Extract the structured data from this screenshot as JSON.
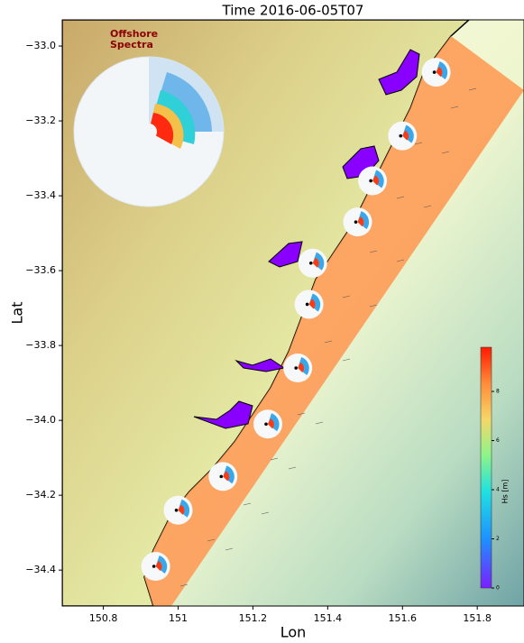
{
  "chart_data": {
    "type": "map",
    "title": "Time 2016-06-05T07",
    "x_label": "Lon",
    "y_label": "Lat",
    "annotation": "Offshore\nSpectra",
    "xlim": [
      150.69,
      151.925
    ],
    "ylim": [
      -34.496,
      -32.93
    ],
    "xticks": [
      150.8,
      151.0,
      151.2,
      151.4,
      151.6,
      151.8
    ],
    "yticks": [
      {
        "value": -33.0,
        "label": "−33.0"
      },
      {
        "value": -33.2,
        "label": "−33.2"
      },
      {
        "value": -33.4,
        "label": "−33.4"
      },
      {
        "value": -33.6,
        "label": "−33.6"
      },
      {
        "value": -33.8,
        "label": "−33.8"
      },
      {
        "value": -34.0,
        "label": "−34.0"
      },
      {
        "value": -34.2,
        "label": "−34.2"
      },
      {
        "value": -34.4,
        "label": "−34.4"
      }
    ],
    "colorbar": {
      "label": "Hs [m]",
      "lim": [
        0,
        9.8
      ],
      "ticks": [
        0,
        2,
        4,
        6,
        8
      ]
    },
    "spectra_points": {
      "x": [
        151.69,
        151.6,
        151.52,
        151.48,
        151.36,
        151.35,
        151.32,
        151.24,
        151.12,
        151.0,
        150.94
      ],
      "y": [
        -33.07,
        -33.24,
        -33.36,
        -33.47,
        -33.58,
        -33.69,
        -33.86,
        -34.01,
        -34.15,
        -34.24,
        -34.39
      ]
    }
  }
}
